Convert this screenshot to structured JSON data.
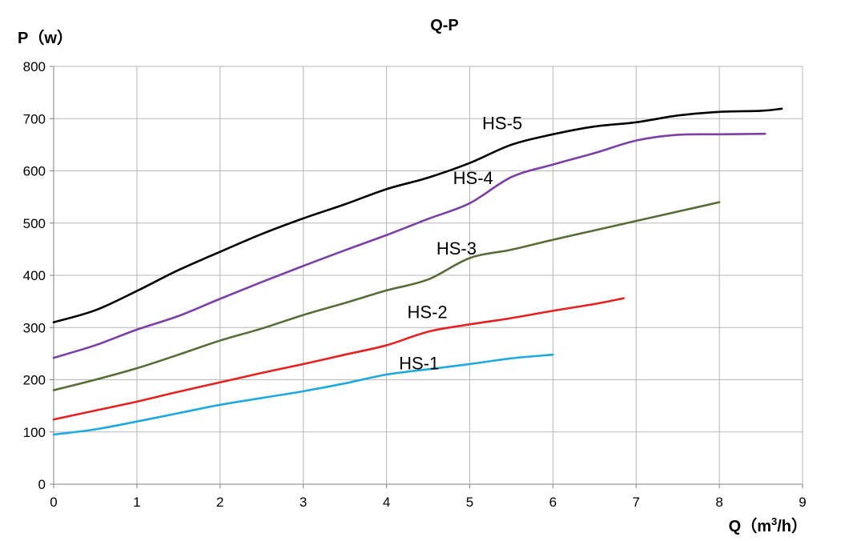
{
  "chart_data": {
    "type": "line",
    "title": "Q-P",
    "ylabel": "P（w）",
    "xlabel_prefix": "Q（m",
    "xlabel_sup": "3",
    "xlabel_suffix": "/h）",
    "xlim": [
      0,
      9
    ],
    "ylim": [
      0,
      800
    ],
    "x_ticks": [
      "0",
      "1",
      "2",
      "3",
      "4",
      "5",
      "6",
      "7",
      "8",
      "9"
    ],
    "y_ticks": [
      "0",
      "100",
      "200",
      "300",
      "400",
      "500",
      "600",
      "700",
      "800"
    ],
    "grid": true,
    "series": [
      {
        "name": "HS-1",
        "color": "#1eaae0",
        "points": [
          [
            0,
            95
          ],
          [
            0.5,
            105
          ],
          [
            1,
            120
          ],
          [
            1.5,
            136
          ],
          [
            2,
            152
          ],
          [
            2.5,
            165
          ],
          [
            3,
            178
          ],
          [
            3.5,
            193
          ],
          [
            4,
            210
          ],
          [
            4.5,
            220
          ],
          [
            5,
            230
          ],
          [
            5.5,
            241
          ],
          [
            6,
            248
          ]
        ]
      },
      {
        "name": "HS-2",
        "color": "#e8201f",
        "points": [
          [
            0,
            124
          ],
          [
            0.5,
            141
          ],
          [
            1,
            158
          ],
          [
            1.5,
            177
          ],
          [
            2,
            195
          ],
          [
            2.5,
            213
          ],
          [
            3,
            230
          ],
          [
            3.5,
            248
          ],
          [
            4,
            266
          ],
          [
            4.5,
            292
          ],
          [
            5,
            306
          ],
          [
            5.5,
            318
          ],
          [
            6,
            332
          ],
          [
            6.5,
            345
          ],
          [
            6.85,
            356
          ]
        ]
      },
      {
        "name": "HS-3",
        "color": "#566e36",
        "points": [
          [
            0,
            180
          ],
          [
            0.5,
            200
          ],
          [
            1,
            222
          ],
          [
            1.5,
            248
          ],
          [
            2,
            275
          ],
          [
            2.5,
            298
          ],
          [
            3,
            324
          ],
          [
            3.5,
            347
          ],
          [
            4,
            371
          ],
          [
            4.5,
            392
          ],
          [
            5,
            433
          ],
          [
            5.5,
            449
          ],
          [
            6,
            468
          ],
          [
            6.5,
            486
          ],
          [
            7,
            504
          ],
          [
            7.5,
            522
          ],
          [
            8,
            540
          ]
        ]
      },
      {
        "name": "HS-4",
        "color": "#7c3fa8",
        "points": [
          [
            0,
            242
          ],
          [
            0.5,
            266
          ],
          [
            1,
            296
          ],
          [
            1.5,
            322
          ],
          [
            2,
            355
          ],
          [
            2.5,
            387
          ],
          [
            3,
            418
          ],
          [
            3.5,
            448
          ],
          [
            4,
            477
          ],
          [
            4.5,
            508
          ],
          [
            5,
            538
          ],
          [
            5.5,
            588
          ],
          [
            6,
            612
          ],
          [
            6.5,
            634
          ],
          [
            7,
            658
          ],
          [
            7.5,
            669
          ],
          [
            8,
            670
          ],
          [
            8.55,
            671
          ]
        ]
      },
      {
        "name": "HS-5",
        "color": "#000000",
        "points": [
          [
            0,
            310
          ],
          [
            0.5,
            333
          ],
          [
            1,
            370
          ],
          [
            1.5,
            410
          ],
          [
            2,
            445
          ],
          [
            2.5,
            479
          ],
          [
            3,
            509
          ],
          [
            3.5,
            536
          ],
          [
            4,
            565
          ],
          [
            4.5,
            587
          ],
          [
            5,
            615
          ],
          [
            5.5,
            650
          ],
          [
            6,
            670
          ],
          [
            6.5,
            685
          ],
          [
            7,
            693
          ],
          [
            7.5,
            706
          ],
          [
            8,
            713
          ],
          [
            8.5,
            715
          ],
          [
            8.75,
            719
          ]
        ]
      }
    ],
    "series_labels": [
      {
        "text": "HS-1",
        "x": 4.15,
        "y": 220,
        "color": "#000000"
      },
      {
        "text": "HS-2",
        "x": 4.25,
        "y": 318,
        "color": "#000000"
      },
      {
        "text": "HS-3",
        "x": 4.6,
        "y": 440,
        "color": "#000000"
      },
      {
        "text": "HS-4",
        "x": 4.8,
        "y": 575,
        "color": "#000000"
      },
      {
        "text": "HS-5",
        "x": 5.15,
        "y": 680,
        "color": "#000000"
      }
    ]
  }
}
